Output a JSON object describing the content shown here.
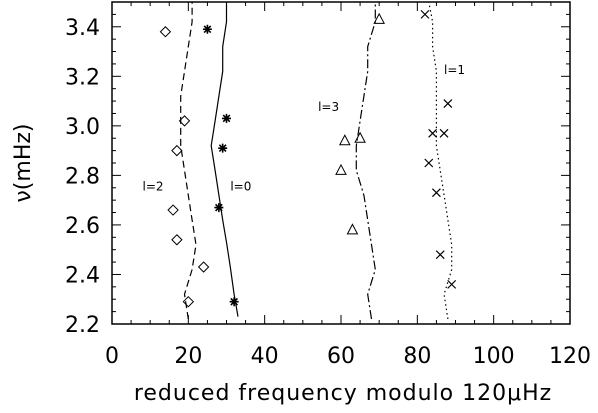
{
  "chart_data": {
    "type": "scatter",
    "xlabel": "reduced frequency modulo 120μHz",
    "ylabel": "ν(mHz)",
    "xlim": [
      0,
      120
    ],
    "ylim": [
      2.2,
      3.5
    ],
    "xticks": [
      0,
      20,
      40,
      60,
      80,
      100,
      120
    ],
    "yticks": [
      2.2,
      2.4,
      2.6,
      2.8,
      3.0,
      3.2,
      3.4
    ],
    "xtick_labels": [
      "0",
      "20",
      "40",
      "60",
      "80",
      "100",
      "120"
    ],
    "ytick_labels": [
      "2.2",
      "2.4",
      "2.6",
      "2.8",
      "3.0",
      "3.2",
      "3.4"
    ],
    "grid": false,
    "series": [
      {
        "name": "l=0",
        "label_at": [
          31,
          2.76
        ],
        "marker": "asterisk",
        "line_style": "solid",
        "points": [
          [
            32,
            2.29
          ],
          [
            28,
            2.67
          ],
          [
            29,
            2.91
          ],
          [
            30,
            3.03
          ],
          [
            25,
            3.39
          ]
        ],
        "line": [
          [
            33,
            2.23
          ],
          [
            32,
            2.32
          ],
          [
            31,
            2.43
          ],
          [
            30,
            2.53
          ],
          [
            29,
            2.62
          ],
          [
            28,
            2.72
          ],
          [
            27,
            2.82
          ],
          [
            26,
            2.92
          ],
          [
            27,
            3.02
          ],
          [
            28,
            3.12
          ],
          [
            29,
            3.22
          ],
          [
            29,
            3.32
          ],
          [
            30,
            3.42
          ],
          [
            30,
            3.5
          ]
        ]
      },
      {
        "name": "l=2",
        "label_at": [
          8,
          2.76
        ],
        "marker": "diamond",
        "line_style": "dashed",
        "points": [
          [
            20,
            2.29
          ],
          [
            24,
            2.43
          ],
          [
            17,
            2.54
          ],
          [
            16,
            2.66
          ],
          [
            17,
            2.9
          ],
          [
            19,
            3.02
          ],
          [
            14,
            3.38
          ]
        ],
        "line": [
          [
            20,
            2.22
          ],
          [
            19,
            2.32
          ],
          [
            21,
            2.42
          ],
          [
            22,
            2.52
          ],
          [
            21,
            2.62
          ],
          [
            20,
            2.72
          ],
          [
            19,
            2.82
          ],
          [
            18,
            2.92
          ],
          [
            18,
            3.02
          ],
          [
            18,
            3.12
          ],
          [
            19,
            3.22
          ],
          [
            20,
            3.32
          ],
          [
            21,
            3.42
          ],
          [
            21,
            3.5
          ]
        ]
      },
      {
        "name": "l=3",
        "label_at": [
          54,
          3.08
        ],
        "marker": "triangle",
        "line_style": "dashdot",
        "points": [
          [
            63,
            2.58
          ],
          [
            60,
            2.82
          ],
          [
            61,
            2.94
          ],
          [
            65,
            2.95
          ],
          [
            70,
            3.43
          ]
        ],
        "line": [
          [
            68,
            2.22
          ],
          [
            67,
            2.32
          ],
          [
            69,
            2.42
          ],
          [
            68,
            2.52
          ],
          [
            67,
            2.62
          ],
          [
            66,
            2.72
          ],
          [
            64,
            2.82
          ],
          [
            64,
            2.92
          ],
          [
            65,
            3.02
          ],
          [
            66,
            3.12
          ],
          [
            67,
            3.22
          ],
          [
            67,
            3.32
          ],
          [
            69,
            3.42
          ],
          [
            69,
            3.5
          ]
        ]
      },
      {
        "name": "l=1",
        "label_at": [
          87,
          3.23
        ],
        "marker": "x",
        "line_style": "dotted",
        "points": [
          [
            89,
            2.36
          ],
          [
            86,
            2.48
          ],
          [
            85,
            2.73
          ],
          [
            83,
            2.85
          ],
          [
            84,
            2.97
          ],
          [
            87,
            2.97
          ],
          [
            88,
            3.09
          ],
          [
            82,
            3.45
          ]
        ],
        "line": [
          [
            88,
            2.22
          ],
          [
            87,
            2.32
          ],
          [
            89,
            2.42
          ],
          [
            89,
            2.52
          ],
          [
            88,
            2.62
          ],
          [
            87,
            2.72
          ],
          [
            86,
            2.82
          ],
          [
            85,
            2.92
          ],
          [
            85,
            3.02
          ],
          [
            85,
            3.12
          ],
          [
            85,
            3.22
          ],
          [
            84,
            3.32
          ],
          [
            84,
            3.42
          ],
          [
            83,
            3.5
          ]
        ]
      }
    ]
  }
}
